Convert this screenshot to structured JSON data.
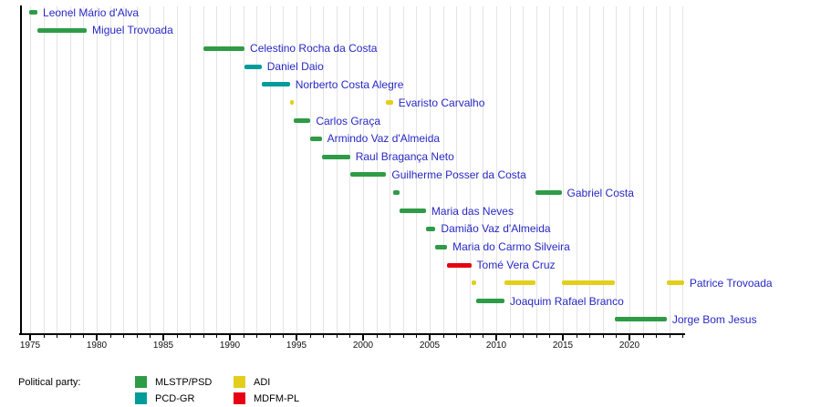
{
  "chart_data": {
    "type": "bar",
    "subtype": "gantt-timeline",
    "title": "",
    "xlabel": "",
    "ylabel": "",
    "grid": "vertical, one line per year",
    "x_axis": {
      "min": 1974.25,
      "max": 2024.1,
      "tick_start": 1975,
      "tick_end": 2024,
      "tick_every": 1,
      "labeled_ticks": [
        1975,
        1980,
        1985,
        1990,
        1995,
        2000,
        2005,
        2010,
        2015,
        2020
      ]
    },
    "parties": {
      "MLSTP/PSD": "#2e9b47",
      "PCD-GR": "#009c9c",
      "ADI": "#e3ce1b",
      "MDFM-PL": "#e60014"
    },
    "legend": {
      "title": "Political party:",
      "position": "bottom-left",
      "items": [
        {
          "name": "MLSTP/PSD",
          "color": "#2e9b47"
        },
        {
          "name": "PCD-GR",
          "color": "#009c9c"
        },
        {
          "name": "ADI",
          "color": "#e3ce1b"
        },
        {
          "name": "MDFM-PL",
          "color": "#e60014"
        }
      ]
    },
    "rows": [
      {
        "name": "Leonel Mário d'Alva",
        "party": "MLSTP/PSD",
        "terms": [
          [
            1974.95,
            1975.55
          ]
        ]
      },
      {
        "name": "Miguel Trovoada",
        "party": "MLSTP/PSD",
        "terms": [
          [
            1975.55,
            1979.25
          ]
        ]
      },
      {
        "name": "Celestino Rocha da Costa",
        "party": "MLSTP/PSD",
        "terms": [
          [
            1988.02,
            1991.1
          ]
        ]
      },
      {
        "name": "Daniel Daio",
        "party": "PCD-GR",
        "terms": [
          [
            1991.1,
            1992.38
          ]
        ]
      },
      {
        "name": "Norberto Costa Alegre",
        "party": "PCD-GR",
        "terms": [
          [
            1992.38,
            1994.5
          ]
        ]
      },
      {
        "name": "Evaristo Carvalho",
        "party": "ADI",
        "terms": [
          [
            1994.5,
            1994.82
          ],
          [
            2001.74,
            2002.24
          ]
        ]
      },
      {
        "name": "Carlos Graça",
        "party": "MLSTP/PSD",
        "terms": [
          [
            1994.82,
            1996.05
          ]
        ]
      },
      {
        "name": "Armindo Vaz d'Almeida",
        "party": "MLSTP/PSD",
        "terms": [
          [
            1996.05,
            1996.89
          ]
        ]
      },
      {
        "name": "Raul Bragança Neto",
        "party": "MLSTP/PSD",
        "terms": [
          [
            1996.89,
            1999.02
          ]
        ]
      },
      {
        "name": "Guilherme Posser da Costa",
        "party": "MLSTP/PSD",
        "terms": [
          [
            1999.02,
            2001.74
          ]
        ]
      },
      {
        "name": "Gabriel Costa",
        "party": "MLSTP/PSD",
        "terms": [
          [
            2002.24,
            2002.77
          ],
          [
            2012.95,
            2014.9
          ]
        ]
      },
      {
        "name": "Maria das Neves",
        "party": "MLSTP/PSD",
        "terms": [
          [
            2002.77,
            2004.72
          ]
        ]
      },
      {
        "name": "Damião Vaz d'Almeida",
        "party": "MLSTP/PSD",
        "terms": [
          [
            2004.72,
            2005.44
          ]
        ]
      },
      {
        "name": "Maria do Carmo Silveira",
        "party": "MLSTP/PSD",
        "terms": [
          [
            2005.44,
            2006.31
          ]
        ]
      },
      {
        "name": "Tomé Vera Cruz",
        "party": "MDFM-PL",
        "terms": [
          [
            2006.31,
            2008.12
          ]
        ]
      },
      {
        "name": "Patrice Trovoada",
        "party": "ADI",
        "terms": [
          [
            2008.12,
            2008.48
          ],
          [
            2010.62,
            2012.95
          ],
          [
            2014.9,
            2018.92
          ],
          [
            2022.8,
            2024.1
          ]
        ]
      },
      {
        "name": "Joaquim Rafael Branco",
        "party": "MLSTP/PSD",
        "terms": [
          [
            2008.48,
            2010.62
          ]
        ]
      },
      {
        "name": "Jorge Bom Jesus",
        "party": "MLSTP/PSD",
        "terms": [
          [
            2018.92,
            2022.8
          ]
        ]
      }
    ]
  },
  "colors": {
    "background": "#ffffff",
    "leader_link": "#2828c4",
    "axis": "#000000",
    "gridline": "#e4e4e4",
    "axis_text": "#111111"
  }
}
